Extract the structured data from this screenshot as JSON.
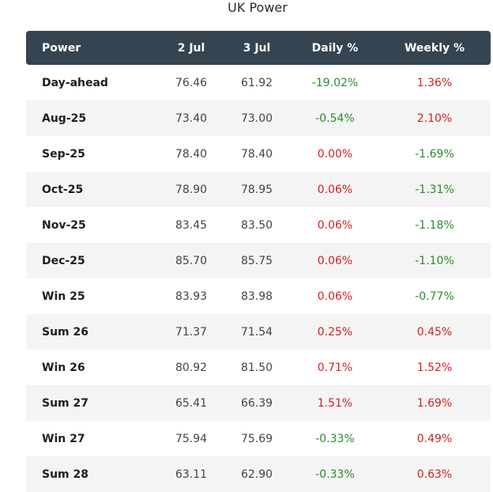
{
  "title": "UK Power",
  "headers": [
    "Power",
    "2 Jul",
    "3 Jul",
    "Daily %",
    "Weekly %"
  ],
  "rows": [
    {
      "label": "Day-ahead",
      "jul2": "76.46",
      "jul3": "61.92",
      "daily": "-19.02%",
      "weekly": "1.36%"
    },
    {
      "label": "Aug-25",
      "jul2": "73.40",
      "jul3": "73.00",
      "daily": "-0.54%",
      "weekly": "2.10%"
    },
    {
      "label": "Sep-25",
      "jul2": "78.40",
      "jul3": "78.40",
      "daily": "0.00%",
      "weekly": "-1.69%"
    },
    {
      "label": "Oct-25",
      "jul2": "78.90",
      "jul3": "78.95",
      "daily": "0.06%",
      "weekly": "-1.31%"
    },
    {
      "label": "Nov-25",
      "jul2": "83.45",
      "jul3": "83.50",
      "daily": "0.06%",
      "weekly": "-1.18%"
    },
    {
      "label": "Dec-25",
      "jul2": "85.70",
      "jul3": "85.75",
      "daily": "0.06%",
      "weekly": "-1.10%"
    },
    {
      "label": "Win 25",
      "jul2": "83.93",
      "jul3": "83.98",
      "daily": "0.06%",
      "weekly": "-0.77%"
    },
    {
      "label": "Sum 26",
      "jul2": "71.37",
      "jul3": "71.54",
      "daily": "0.25%",
      "weekly": "0.45%"
    },
    {
      "label": "Win 26",
      "jul2": "80.92",
      "jul3": "81.50",
      "daily": "0.71%",
      "weekly": "1.52%"
    },
    {
      "label": "Sum 27",
      "jul2": "65.41",
      "jul3": "66.39",
      "daily": "1.51%",
      "weekly": "1.69%"
    },
    {
      "label": "Win 27",
      "jul2": "75.94",
      "jul3": "75.69",
      "daily": "-0.33%",
      "weekly": "0.49%"
    },
    {
      "label": "Sum 28",
      "jul2": "63.11",
      "jul3": "62.90",
      "daily": "-0.33%",
      "weekly": "0.63%"
    }
  ],
  "colors": {
    "header_bg": "#344450",
    "positive": "#d42020",
    "negative": "#2a8a2a",
    "stripe": "#f4f4f4"
  }
}
